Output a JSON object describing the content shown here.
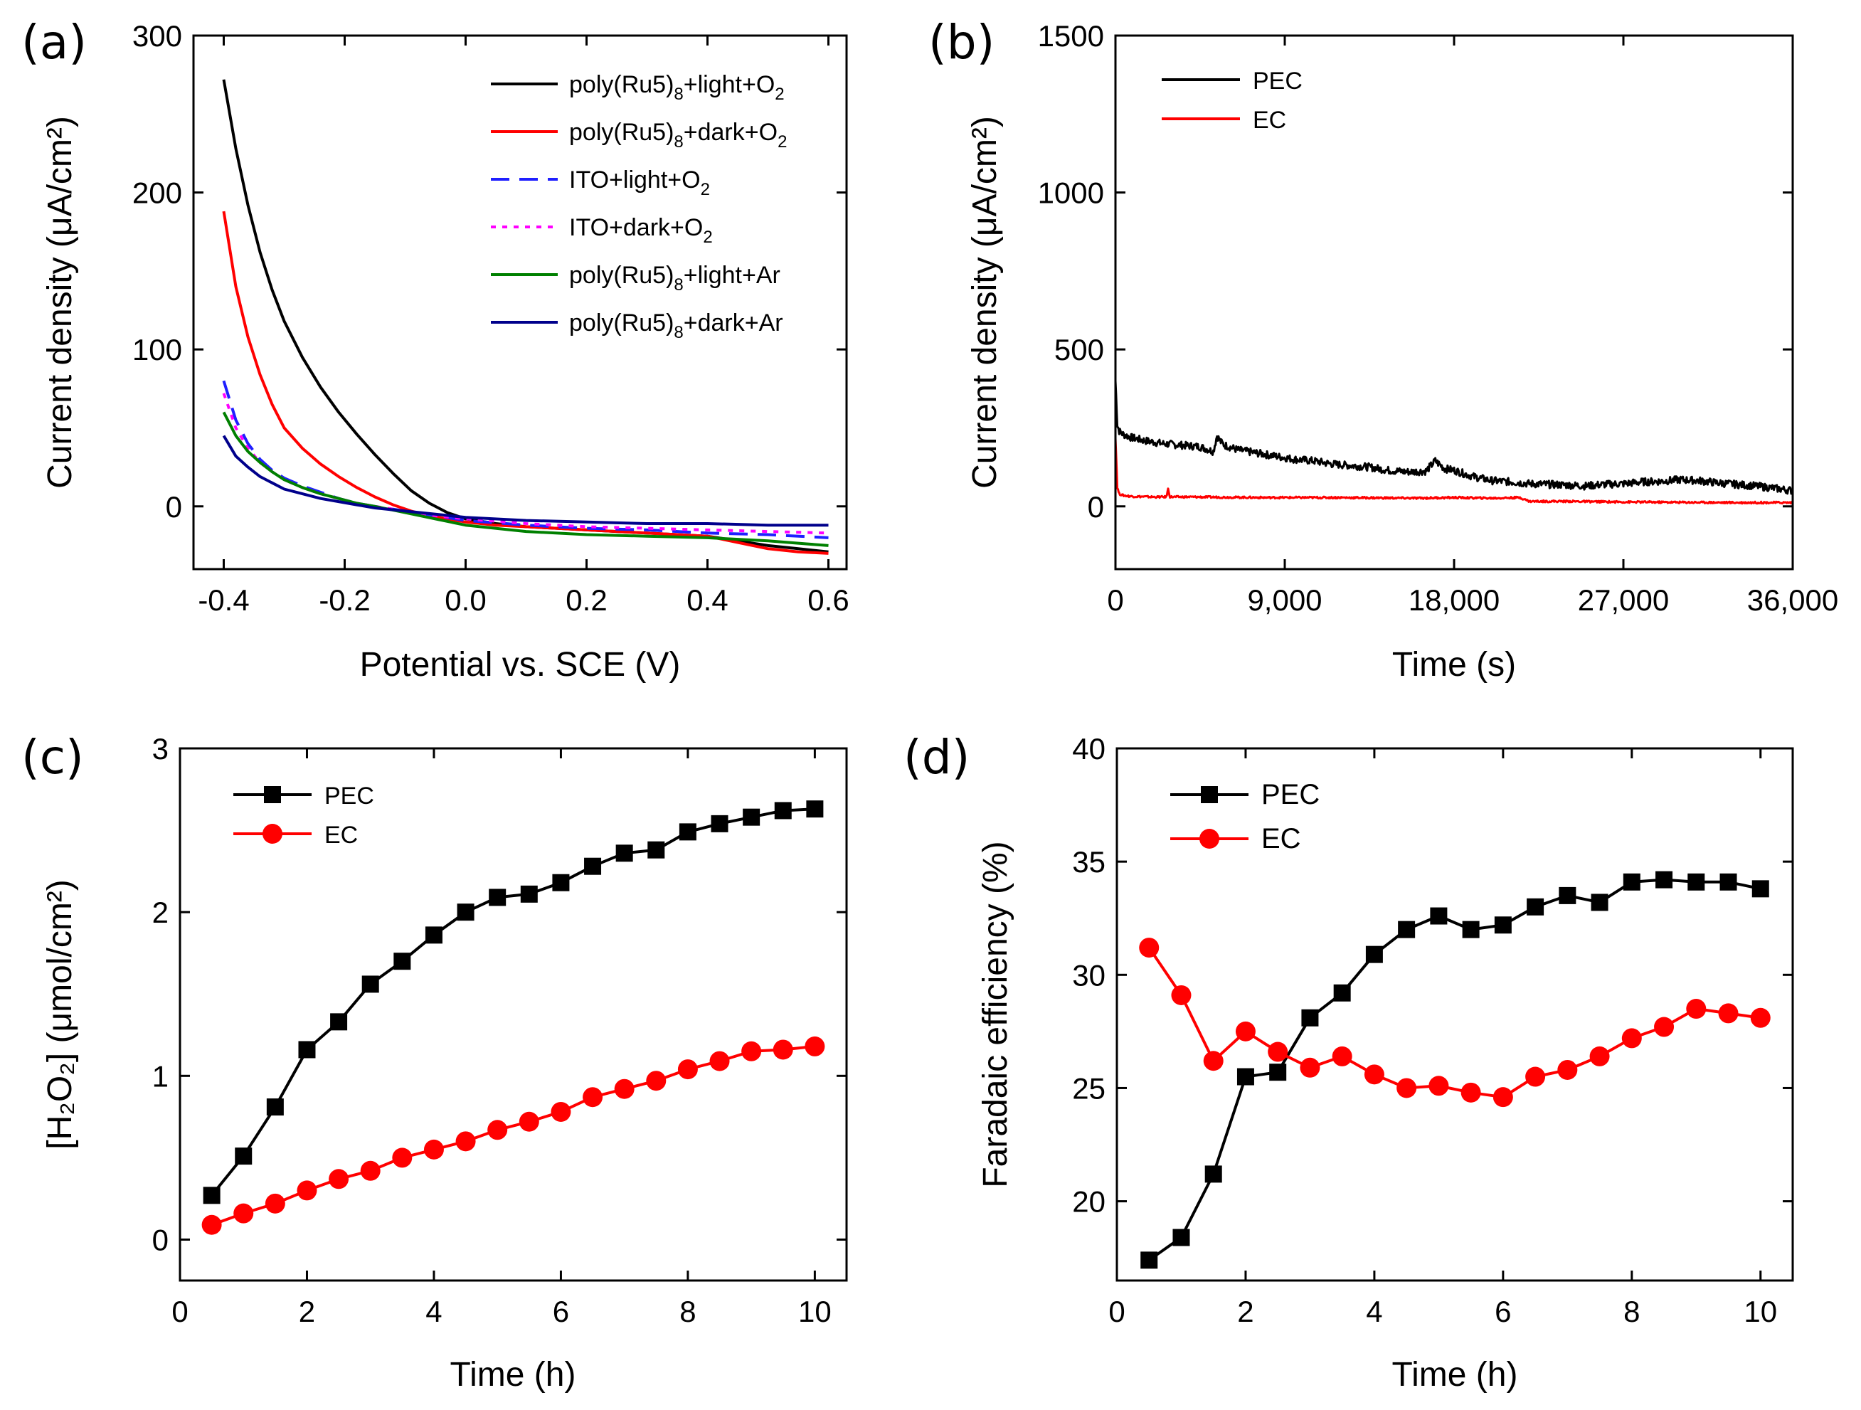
{
  "colors": {
    "black": "#000000",
    "red": "#ff0000",
    "blue": "#1f1fff",
    "magenta": "#ff00ff",
    "green": "#008000",
    "navy": "#00008b"
  },
  "chart_data": [
    {
      "id": "a",
      "panel_label": "(a)",
      "type": "line",
      "xlabel": "Potential vs. SCE (V)",
      "ylabel": "Current density (μA/cm²)",
      "xlim": [
        -0.45,
        0.63
      ],
      "ylim": [
        -40,
        300
      ],
      "xticks": [
        -0.4,
        -0.2,
        0.0,
        0.2,
        0.4,
        0.6
      ],
      "xtick_labels": [
        "-0.4",
        "-0.2",
        "0.0",
        "0.2",
        "0.4",
        "0.6"
      ],
      "yticks": [
        0,
        100,
        200,
        300
      ],
      "ytick_labels": [
        "0",
        "100",
        "200",
        "300"
      ],
      "legend_position": "top-right",
      "series": [
        {
          "name": "poly(Ru5)8+light+O2",
          "legend_main": "poly(Ru5)",
          "legend_sub": "8",
          "legend_mid": "+light+O",
          "legend_sub2": "2",
          "legend_tail": "",
          "color": "black",
          "dash": "solid",
          "x": [
            -0.4,
            -0.38,
            -0.36,
            -0.34,
            -0.32,
            -0.3,
            -0.27,
            -0.24,
            -0.21,
            -0.18,
            -0.15,
            -0.12,
            -0.09,
            -0.06,
            -0.03,
            0.0,
            0.05,
            0.1,
            0.15,
            0.2,
            0.25,
            0.3,
            0.35,
            0.4,
            0.45,
            0.5,
            0.55,
            0.6
          ],
          "y": [
            272,
            228,
            192,
            162,
            138,
            118,
            95,
            76,
            60,
            46,
            33,
            21,
            10,
            2,
            -4,
            -8,
            -11,
            -13,
            -14,
            -15,
            -16,
            -17,
            -18,
            -19,
            -22,
            -25,
            -27,
            -29
          ]
        },
        {
          "name": "poly(Ru5)8+dark+O2",
          "legend_main": "poly(Ru5)",
          "legend_sub": "8",
          "legend_mid": "+dark+O",
          "legend_sub2": "2",
          "legend_tail": "",
          "color": "red",
          "dash": "solid",
          "x": [
            -0.4,
            -0.38,
            -0.36,
            -0.34,
            -0.32,
            -0.3,
            -0.27,
            -0.24,
            -0.21,
            -0.18,
            -0.15,
            -0.12,
            -0.09,
            -0.06,
            -0.03,
            0.0,
            0.05,
            0.1,
            0.15,
            0.2,
            0.25,
            0.3,
            0.35,
            0.4,
            0.45,
            0.5,
            0.55,
            0.6
          ],
          "y": [
            188,
            140,
            108,
            84,
            65,
            50,
            37,
            27,
            19,
            12,
            6,
            1,
            -3,
            -6,
            -8,
            -10,
            -12,
            -13,
            -14,
            -15,
            -16,
            -17,
            -18,
            -19,
            -23,
            -27,
            -29,
            -30
          ]
        },
        {
          "name": "ITO+light+O2",
          "legend_main": "ITO+light+O",
          "legend_sub": "2",
          "legend_mid": "",
          "legend_sub2": "",
          "legend_tail": "",
          "color": "blue",
          "dash": "long",
          "x": [
            -0.4,
            -0.38,
            -0.36,
            -0.34,
            -0.32,
            -0.3,
            -0.27,
            -0.24,
            -0.21,
            -0.18,
            -0.15,
            -0.1,
            -0.05,
            0.0,
            0.1,
            0.2,
            0.3,
            0.4,
            0.5,
            0.6
          ],
          "y": [
            80,
            55,
            40,
            30,
            23,
            18,
            13,
            9,
            5,
            2,
            0,
            -3,
            -6,
            -9,
            -12,
            -14,
            -15,
            -17,
            -18,
            -20
          ]
        },
        {
          "name": "ITO+dark+O2",
          "legend_main": "ITO+dark+O",
          "legend_sub": "2",
          "legend_mid": "",
          "legend_sub2": "",
          "legend_tail": "",
          "color": "magenta",
          "dash": "dot",
          "x": [
            -0.4,
            -0.38,
            -0.36,
            -0.34,
            -0.32,
            -0.3,
            -0.27,
            -0.24,
            -0.21,
            -0.18,
            -0.15,
            -0.1,
            -0.05,
            0.0,
            0.1,
            0.2,
            0.3,
            0.4,
            0.5,
            0.6
          ],
          "y": [
            72,
            50,
            37,
            28,
            22,
            17,
            12,
            8,
            5,
            2,
            0,
            -3,
            -6,
            -8,
            -11,
            -13,
            -14,
            -15,
            -16,
            -17
          ]
        },
        {
          "name": "poly(Ru5)8+light+Ar",
          "legend_main": "poly(Ru5)",
          "legend_sub": "8",
          "legend_mid": "+light+Ar",
          "legend_sub2": "",
          "legend_tail": "",
          "color": "green",
          "dash": "solid",
          "x": [
            -0.4,
            -0.38,
            -0.36,
            -0.34,
            -0.32,
            -0.3,
            -0.27,
            -0.24,
            -0.21,
            -0.18,
            -0.15,
            -0.1,
            -0.05,
            0.0,
            0.1,
            0.2,
            0.3,
            0.4,
            0.5,
            0.6
          ],
          "y": [
            60,
            45,
            35,
            28,
            22,
            17,
            12,
            8,
            5,
            2,
            0,
            -4,
            -8,
            -12,
            -16,
            -18,
            -19,
            -20,
            -22,
            -25
          ]
        },
        {
          "name": "poly(Ru5)8+dark+Ar",
          "legend_main": "poly(Ru5)",
          "legend_sub": "8",
          "legend_mid": "+dark+Ar",
          "legend_sub2": "",
          "legend_tail": "",
          "color": "navy",
          "dash": "solid",
          "x": [
            -0.4,
            -0.38,
            -0.36,
            -0.34,
            -0.32,
            -0.3,
            -0.27,
            -0.24,
            -0.21,
            -0.18,
            -0.15,
            -0.1,
            -0.05,
            0.0,
            0.1,
            0.2,
            0.3,
            0.4,
            0.5,
            0.6
          ],
          "y": [
            45,
            32,
            25,
            19,
            15,
            11,
            8,
            5,
            3,
            1,
            -1,
            -3,
            -5,
            -7,
            -9,
            -10,
            -11,
            -11,
            -12,
            -12
          ]
        }
      ]
    },
    {
      "id": "b",
      "panel_label": "(b)",
      "type": "line",
      "xlabel": "Time (s)",
      "ylabel": "Current density (μA/cm²)",
      "xlim": [
        0,
        36000
      ],
      "ylim": [
        -200,
        1500
      ],
      "xticks": [
        0,
        9000,
        18000,
        27000,
        36000
      ],
      "xtick_labels": [
        "0",
        "9,000",
        "18,000",
        "27,000",
        "36,000"
      ],
      "yticks": [
        0,
        500,
        1000,
        1500
      ],
      "ytick_labels": [
        "0",
        "500",
        "1000",
        "1500"
      ],
      "legend_position": "top-left",
      "series": [
        {
          "name": "PEC",
          "color": "black",
          "dash": "solid",
          "noise": 12,
          "x": [
            0,
            100,
            200,
            400,
            800,
            1500,
            2500,
            3500,
            4500,
            5200,
            5400,
            5600,
            5800,
            6500,
            7500,
            8500,
            9500,
            10500,
            11500,
            12500,
            13500,
            14500,
            15500,
            16500,
            17000,
            17500,
            18000,
            19000,
            20000,
            21000,
            22000,
            23000,
            24000,
            25000,
            26000,
            27000,
            28000,
            29000,
            30000,
            31000,
            32000,
            33000,
            34000,
            35000,
            36000
          ],
          "y": [
            400,
            260,
            240,
            230,
            220,
            210,
            200,
            195,
            190,
            175,
            225,
            205,
            195,
            180,
            170,
            160,
            150,
            145,
            135,
            130,
            125,
            115,
            110,
            112,
            145,
            120,
            115,
            95,
            82,
            78,
            72,
            70,
            68,
            65,
            70,
            72,
            78,
            80,
            85,
            82,
            75,
            70,
            65,
            58,
            50
          ]
        },
        {
          "name": "EC",
          "color": "red",
          "dash": "solid",
          "noise": 3,
          "x": [
            0,
            100,
            200,
            400,
            800,
            2000,
            2700,
            2800,
            2900,
            4000,
            8000,
            12000,
            16000,
            18000,
            20000,
            21500,
            22000,
            24000,
            27000,
            30000,
            33000,
            36000
          ],
          "y": [
            220,
            60,
            40,
            35,
            32,
            30,
            30,
            55,
            30,
            30,
            28,
            28,
            26,
            28,
            26,
            28,
            16,
            16,
            14,
            13,
            12,
            12
          ]
        }
      ]
    },
    {
      "id": "c",
      "panel_label": "(c)",
      "type": "line",
      "xlabel": "Time (h)",
      "ylabel": "[H₂O₂] (μmol/cm²)",
      "xlim": [
        0,
        10.5
      ],
      "ylim": [
        -0.25,
        3
      ],
      "xticks": [
        0,
        2,
        4,
        6,
        8,
        10
      ],
      "xtick_labels": [
        "0",
        "2",
        "4",
        "6",
        "8",
        "10"
      ],
      "yticks": [
        0,
        1,
        2,
        3
      ],
      "ytick_labels": [
        "0",
        "1",
        "2",
        "3"
      ],
      "legend_position": "top-left",
      "series": [
        {
          "name": "PEC",
          "color": "black",
          "marker": "square",
          "x": [
            0.5,
            1,
            1.5,
            2,
            2.5,
            3,
            3.5,
            4,
            4.5,
            5,
            5.5,
            6,
            6.5,
            7,
            7.5,
            8,
            8.5,
            9,
            9.5,
            10
          ],
          "y": [
            0.27,
            0.51,
            0.81,
            1.16,
            1.33,
            1.56,
            1.7,
            1.86,
            2.0,
            2.09,
            2.11,
            2.18,
            2.28,
            2.36,
            2.38,
            2.49,
            2.54,
            2.58,
            2.62,
            2.63
          ]
        },
        {
          "name": "EC",
          "color": "red",
          "marker": "circle",
          "x": [
            0.5,
            1,
            1.5,
            2,
            2.5,
            3,
            3.5,
            4,
            4.5,
            5,
            5.5,
            6,
            6.5,
            7,
            7.5,
            8,
            8.5,
            9,
            9.5,
            10
          ],
          "y": [
            0.09,
            0.16,
            0.22,
            0.3,
            0.37,
            0.42,
            0.5,
            0.55,
            0.6,
            0.67,
            0.72,
            0.78,
            0.87,
            0.92,
            0.97,
            1.04,
            1.09,
            1.15,
            1.16,
            1.18
          ]
        }
      ]
    },
    {
      "id": "d",
      "panel_label": "(d)",
      "type": "line",
      "xlabel": "Time (h)",
      "ylabel": "Faradaic efficiency (%)",
      "xlim": [
        0,
        10.5
      ],
      "ylim": [
        16.5,
        40
      ],
      "xticks": [
        0,
        2,
        4,
        6,
        8,
        10
      ],
      "xtick_labels": [
        "0",
        "2",
        "4",
        "6",
        "8",
        "10"
      ],
      "yticks": [
        20,
        25,
        30,
        35,
        40
      ],
      "ytick_labels": [
        "20",
        "25",
        "30",
        "35",
        "40"
      ],
      "legend_position": "top-left",
      "series": [
        {
          "name": "PEC",
          "color": "black",
          "marker": "square",
          "x": [
            0.5,
            1,
            1.5,
            2,
            2.5,
            3,
            3.5,
            4,
            4.5,
            5,
            5.5,
            6,
            6.5,
            7,
            7.5,
            8,
            8.5,
            9,
            9.5,
            10
          ],
          "y": [
            17.4,
            18.4,
            21.2,
            25.5,
            25.7,
            28.1,
            29.2,
            30.9,
            32.0,
            32.6,
            32.0,
            32.2,
            33.0,
            33.5,
            33.2,
            34.1,
            34.2,
            34.1,
            34.1,
            33.8
          ]
        },
        {
          "name": "EC",
          "color": "red",
          "marker": "circle",
          "x": [
            0.5,
            1,
            1.5,
            2,
            2.5,
            3,
            3.5,
            4,
            4.5,
            5,
            5.5,
            6,
            6.5,
            7,
            7.5,
            8,
            8.5,
            9,
            9.5,
            10
          ],
          "y": [
            31.2,
            29.1,
            26.2,
            27.5,
            26.6,
            25.9,
            26.4,
            25.6,
            25.0,
            25.1,
            24.8,
            24.6,
            25.5,
            25.8,
            26.4,
            27.2,
            27.7,
            28.5,
            28.3,
            28.1
          ]
        }
      ]
    }
  ]
}
